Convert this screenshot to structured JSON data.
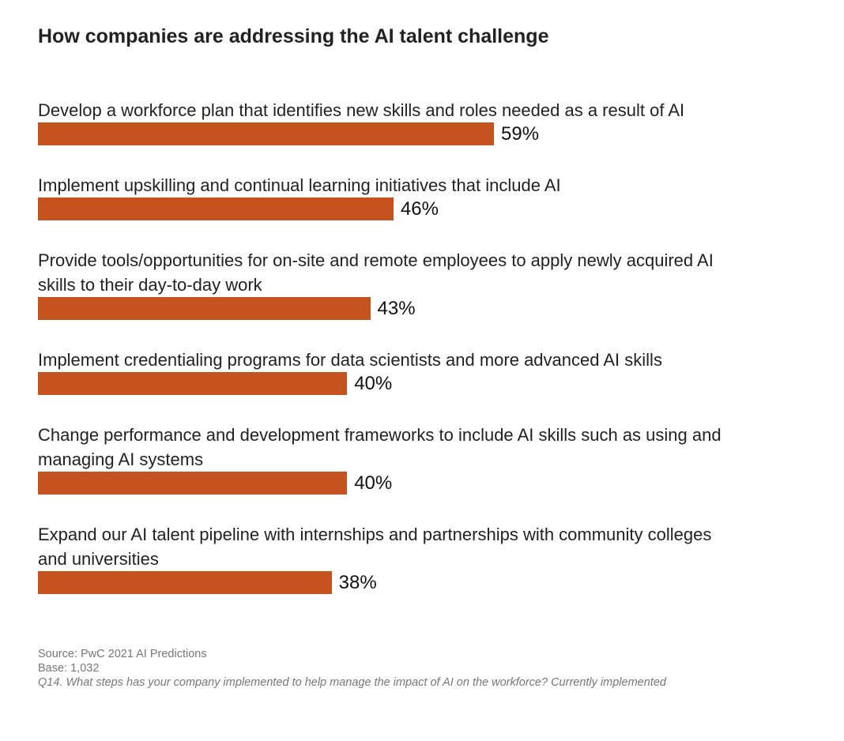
{
  "chart_data": {
    "type": "bar",
    "orientation": "horizontal",
    "title": "How companies are addressing the AI talent challenge",
    "categories": [
      [
        "Develop a workforce plan that identifies new skills and roles needed as a result of AI"
      ],
      [
        "Implement upskilling and continual learning initiatives that include AI"
      ],
      [
        "Provide tools/opportunities for on-site and remote employees to apply newly acquired AI",
        "skills to their day-to-day work"
      ],
      [
        "Implement credentialing programs for data scientists and more advanced AI skills"
      ],
      [
        "Change performance and development frameworks to include AI skills such as using and",
        "managing AI systems"
      ],
      [
        "Expand our AI talent pipeline with internships and partnerships with community colleges",
        "and universities"
      ]
    ],
    "values": [
      59,
      46,
      43,
      40,
      40,
      38
    ],
    "value_labels": [
      "59%",
      "46%",
      "43%",
      "40%",
      "40%",
      "38%"
    ],
    "unit": "%",
    "xlim": [
      0,
      100
    ],
    "grid": false,
    "bar_color": "#C4531F"
  },
  "footer": {
    "source": "Source: PwC 2021 AI Predictions",
    "base": "Base: 1,032",
    "question": "Q14. What steps has your company implemented to help manage the impact of AI on the workforce? Currently implemented"
  }
}
